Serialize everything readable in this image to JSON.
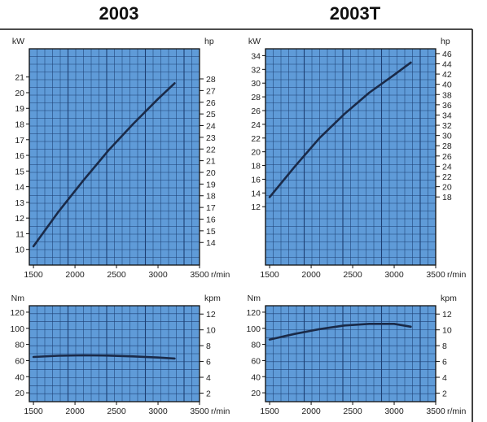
{
  "titles": {
    "left": "2003",
    "right": "2003T"
  },
  "colors": {
    "plot_bg": "#5f9bd8",
    "grid": "#1d3f73",
    "curve": "#1a2a48",
    "frame_line": "#111111"
  },
  "chart_data": [
    {
      "id": "power-2003",
      "type": "line",
      "title": "2003",
      "xlabel": "r/min",
      "ylabel": "kW",
      "ylabel_right": "hp",
      "x_ticks": [
        1500,
        2000,
        2500,
        3000,
        3500
      ],
      "xlim": [
        1450,
        3500
      ],
      "y_ticks": [
        10,
        11,
        12,
        13,
        14,
        15,
        16,
        17,
        18,
        19,
        20,
        21
      ],
      "ylim": [
        9.0,
        22.8
      ],
      "y_right_ticks": [
        14,
        15,
        16,
        17,
        18,
        19,
        20,
        21,
        22,
        23,
        24,
        25,
        26,
        27,
        28
      ],
      "y_right_factor": 1.341,
      "series": [
        {
          "x": [
            1500,
            1800,
            2100,
            2400,
            2700,
            3000,
            3200
          ],
          "y": [
            10.2,
            12.4,
            14.4,
            16.3,
            18.0,
            19.6,
            20.6
          ]
        }
      ]
    },
    {
      "id": "power-2003t",
      "type": "line",
      "title": "2003T",
      "xlabel": "r/min",
      "ylabel": "kW",
      "ylabel_right": "hp",
      "x_ticks": [
        1500,
        2000,
        2500,
        3000,
        3500
      ],
      "xlim": [
        1450,
        3500
      ],
      "y_ticks": [
        12,
        14,
        16,
        18,
        20,
        22,
        24,
        26,
        28,
        30,
        32,
        34
      ],
      "ylim": [
        3.5,
        35.0
      ],
      "y_right_ticks": [
        18,
        20,
        22,
        24,
        26,
        28,
        30,
        32,
        34,
        36,
        38,
        40,
        42,
        44,
        46
      ],
      "y_right_factor": 1.341,
      "series": [
        {
          "x": [
            1500,
            1800,
            2100,
            2400,
            2700,
            3000,
            3200
          ],
          "y": [
            13.4,
            17.8,
            22.0,
            25.5,
            28.6,
            31.2,
            33.0
          ]
        }
      ]
    },
    {
      "id": "torque-2003",
      "type": "line",
      "xlabel": "r/min",
      "ylabel": "Nm",
      "ylabel_right": "kpm",
      "x_ticks": [
        1500,
        2000,
        2500,
        3000,
        3500
      ],
      "xlim": [
        1450,
        3500
      ],
      "y_ticks": [
        20,
        40,
        60,
        80,
        100,
        120
      ],
      "ylim": [
        9,
        128
      ],
      "y_right_ticks": [
        2,
        4,
        6,
        8,
        10,
        12
      ],
      "y_right_factor": 0.10197,
      "series": [
        {
          "x": [
            1500,
            1800,
            2100,
            2400,
            2700,
            3000,
            3200
          ],
          "y": [
            64.5,
            66.0,
            66.5,
            66.2,
            65.2,
            63.8,
            62.5
          ]
        }
      ]
    },
    {
      "id": "torque-2003t",
      "type": "line",
      "xlabel": "r/min",
      "ylabel": "Nm",
      "ylabel_right": "kpm",
      "x_ticks": [
        1500,
        2000,
        2500,
        3000,
        3500
      ],
      "xlim": [
        1450,
        3500
      ],
      "y_ticks": [
        20,
        40,
        60,
        80,
        100,
        120
      ],
      "ylim": [
        9,
        128
      ],
      "y_right_ticks": [
        2,
        4,
        6,
        8,
        10,
        12
      ],
      "y_right_factor": 0.10197,
      "series": [
        {
          "x": [
            1500,
            1800,
            2100,
            2400,
            2700,
            3000,
            3200
          ],
          "y": [
            86.0,
            93.0,
            99.0,
            103.5,
            105.5,
            105.5,
            102.0
          ]
        }
      ]
    }
  ]
}
